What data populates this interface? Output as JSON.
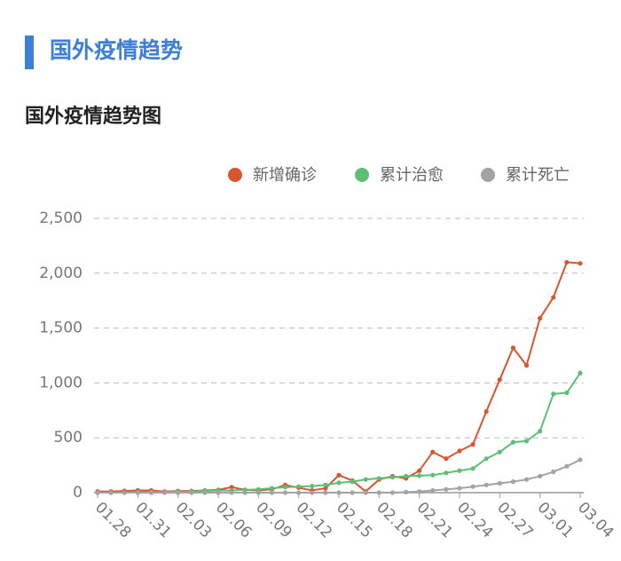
{
  "header": {
    "title": "国外疫情趋势"
  },
  "chart_data": {
    "type": "line",
    "title": "国外疫情趋势图",
    "categories": [
      "01.28",
      null,
      null,
      "01.31",
      null,
      null,
      "02.03",
      null,
      null,
      "02.06",
      null,
      null,
      "02.09",
      null,
      null,
      "02.12",
      null,
      null,
      "02.15",
      null,
      null,
      "02.18",
      null,
      null,
      "02.21",
      null,
      null,
      "02.24",
      null,
      null,
      "02.27",
      null,
      null,
      "03.01",
      null,
      null,
      "03.04"
    ],
    "series": [
      {
        "name": "新增确诊",
        "color": "#d9552f",
        "values": [
          10,
          10,
          15,
          20,
          20,
          10,
          15,
          15,
          20,
          25,
          50,
          25,
          20,
          30,
          70,
          45,
          20,
          40,
          160,
          110,
          10,
          120,
          150,
          130,
          200,
          370,
          310,
          380,
          440,
          740,
          1030,
          1320,
          1160,
          1590,
          1780,
          2100,
          2090
        ]
      },
      {
        "name": "累计治愈",
        "color": "#5cbf75",
        "values": [
          0,
          0,
          0,
          5,
          5,
          5,
          10,
          10,
          15,
          20,
          20,
          25,
          30,
          40,
          50,
          55,
          60,
          70,
          90,
          100,
          120,
          130,
          140,
          150,
          155,
          160,
          180,
          200,
          220,
          310,
          370,
          460,
          470,
          560,
          900,
          910,
          1090
        ]
      },
      {
        "name": "累计死亡",
        "color": "#a3a3a3",
        "values": [
          0,
          0,
          0,
          0,
          0,
          0,
          0,
          0,
          0,
          0,
          0,
          0,
          0,
          0,
          0,
          0,
          0,
          0,
          0,
          0,
          0,
          0,
          0,
          5,
          10,
          20,
          30,
          40,
          55,
          70,
          85,
          100,
          120,
          150,
          190,
          240,
          300
        ]
      }
    ],
    "ylim": [
      0,
      2500
    ],
    "yticks": [
      0,
      500,
      {
        "value": 1000,
        "label": "1,000"
      },
      {
        "value": 1500,
        "label": "1,500"
      },
      {
        "value": 2000,
        "label": "2,000"
      },
      {
        "value": 2500,
        "label": "2,500"
      }
    ],
    "grid": true,
    "legend": "top-right"
  }
}
